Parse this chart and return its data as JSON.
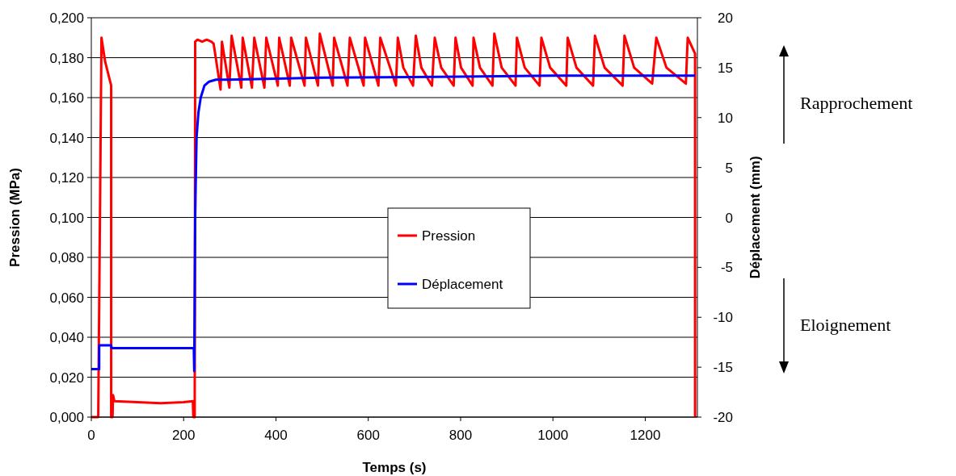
{
  "chart_data": {
    "type": "line",
    "xlabel": "Temps (s)",
    "ylabel": "Pression (MPa)",
    "y2label": "Déplacement (mm)",
    "xlim": [
      0,
      1313
    ],
    "xticks": [
      0,
      200,
      400,
      600,
      800,
      1000,
      1200
    ],
    "ylim": [
      0,
      0.2
    ],
    "yticks": [
      {
        "value": 0,
        "label": "0,000"
      },
      {
        "value": 0.02,
        "label": "0,020"
      },
      {
        "value": 0.04,
        "label": "0,040"
      },
      {
        "value": 0.06,
        "label": "0,060"
      },
      {
        "value": 0.08,
        "label": "0,080"
      },
      {
        "value": 0.1,
        "label": "0,100"
      },
      {
        "value": 0.12,
        "label": "0,120"
      },
      {
        "value": 0.14,
        "label": "0,140"
      },
      {
        "value": 0.16,
        "label": "0,160"
      },
      {
        "value": 0.18,
        "label": "0,180"
      },
      {
        "value": 0.2,
        "label": "0,200"
      }
    ],
    "y2lim": [
      -20,
      20
    ],
    "y2ticks": [
      -20,
      -15,
      -10,
      -5,
      0,
      5,
      10,
      15,
      20
    ],
    "grid": "y",
    "legend": "center",
    "line_style": "solid",
    "marker": "none",
    "annotations": [
      "Rapprochement",
      "Eloignement"
    ],
    "series": [
      {
        "name": "Pression",
        "color": "#ff0000",
        "x": [
          0,
          15,
          22,
          30,
          43,
          43,
          46,
          47,
          50,
          100,
          150,
          200,
          220,
          221,
          224,
          225,
          230,
          240,
          250,
          260,
          265,
          280,
          283,
          299,
          304,
          325,
          328,
          348,
          353,
          375,
          379,
          404,
          407,
          430,
          433,
          462,
          465,
          491,
          495,
          523,
          526,
          555,
          560,
          590,
          593,
          622,
          626,
          660,
          664,
          676,
          697,
          703,
          715,
          738,
          744,
          758,
          785,
          789,
          801,
          826,
          828,
          842,
          869,
          873,
          889,
          919,
          922,
          939,
          971,
          975,
          994,
          1029,
          1032,
          1051,
          1087,
          1091,
          1112,
          1151,
          1155,
          1176,
          1215,
          1224,
          1246,
          1288,
          1292,
          1308,
          1308
        ],
        "values": [
          0,
          0,
          0.19,
          0.178,
          0.166,
          0,
          0,
          0.011,
          0.008,
          0.0075,
          0.007,
          0.0075,
          0.008,
          0,
          0,
          0.188,
          0.189,
          0.188,
          0.189,
          0.188,
          0.187,
          0.164,
          0.188,
          0.165,
          0.191,
          0.165,
          0.19,
          0.165,
          0.19,
          0.165,
          0.19,
          0.166,
          0.19,
          0.166,
          0.19,
          0.166,
          0.19,
          0.166,
          0.192,
          0.166,
          0.19,
          0.166,
          0.19,
          0.166,
          0.19,
          0.166,
          0.19,
          0.166,
          0.19,
          0.175,
          0.166,
          0.191,
          0.175,
          0.166,
          0.19,
          0.175,
          0.166,
          0.19,
          0.175,
          0.166,
          0.19,
          0.175,
          0.166,
          0.192,
          0.175,
          0.166,
          0.19,
          0.175,
          0.166,
          0.19,
          0.175,
          0.166,
          0.19,
          0.175,
          0.166,
          0.191,
          0.175,
          0.166,
          0.191,
          0.175,
          0.167,
          0.19,
          0.175,
          0.167,
          0.19,
          0.182,
          0
        ]
      },
      {
        "name": "Déplacement",
        "color": "#0000ff",
        "axis": "y2",
        "x": [
          0,
          17,
          17,
          43,
          44,
          222,
          223,
          225,
          226,
          228,
          232,
          237,
          245,
          255,
          270,
          300,
          500,
          800,
          1000,
          1308
        ],
        "values": [
          -15.2,
          -15.2,
          -12.8,
          -12.8,
          -13.1,
          -13.1,
          -15.4,
          0,
          3,
          8,
          10.5,
          12,
          13.2,
          13.6,
          13.8,
          13.8,
          14,
          14.1,
          14.2,
          14.2
        ]
      }
    ]
  }
}
